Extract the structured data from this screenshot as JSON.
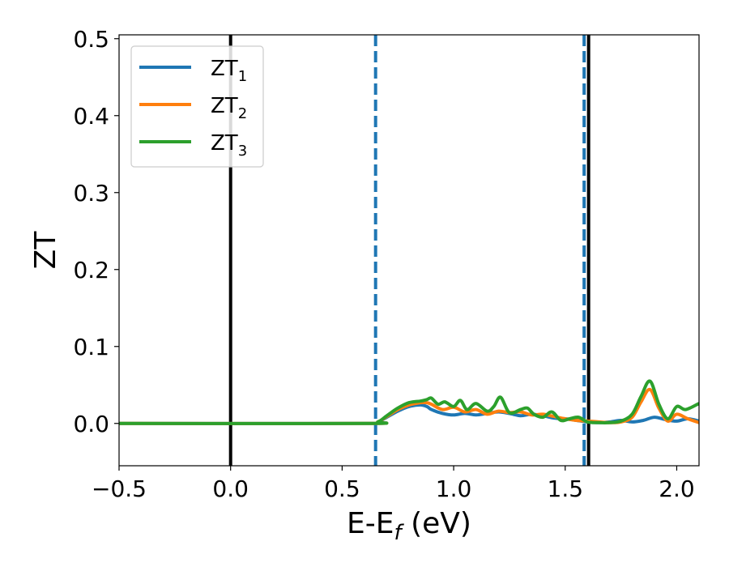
{
  "chart_data": {
    "type": "line",
    "xlabel": "E-E",
    "xlabel_sub": "f",
    "xlabel_unit": " (eV)",
    "ylabel": "ZT",
    "xlim": [
      -0.5,
      2.1
    ],
    "ylim": [
      -0.055,
      0.505
    ],
    "xticks": [
      -0.5,
      0.0,
      0.5,
      1.0,
      1.5,
      2.0
    ],
    "xtick_labels": [
      "−0.5",
      "0.0",
      "0.5",
      "1.0",
      "1.5",
      "2.0"
    ],
    "yticks": [
      0.0,
      0.1,
      0.2,
      0.3,
      0.4,
      0.5
    ],
    "ytick_labels": [
      "0.0",
      "0.1",
      "0.2",
      "0.3",
      "0.4",
      "0.5"
    ],
    "legend_position": "top-left",
    "grid": false,
    "vlines": [
      {
        "x": 0.0,
        "style": "solid",
        "color": "#000000"
      },
      {
        "x": 0.65,
        "style": "dashed",
        "color": "#1f77b4"
      },
      {
        "x": 1.585,
        "style": "dashed",
        "color": "#1f77b4"
      },
      {
        "x": 1.605,
        "style": "solid",
        "color": "#000000"
      }
    ],
    "series": [
      {
        "name": "ZT",
        "sub": "1",
        "color": "#1f77b4",
        "x": [
          -0.5,
          0.6,
          0.66,
          0.7,
          0.75,
          0.8,
          0.85,
          0.88,
          0.9,
          0.95,
          1.0,
          1.05,
          1.1,
          1.15,
          1.2,
          1.25,
          1.3,
          1.35,
          1.4,
          1.45,
          1.5,
          1.55,
          1.6,
          1.65,
          1.7,
          1.75,
          1.8,
          1.85,
          1.9,
          1.95,
          2.0,
          2.05,
          2.1
        ],
        "y": [
          0.0,
          0.0,
          0.002,
          0.008,
          0.016,
          0.022,
          0.024,
          0.022,
          0.018,
          0.013,
          0.011,
          0.013,
          0.011,
          0.013,
          0.015,
          0.013,
          0.01,
          0.012,
          0.01,
          0.007,
          0.006,
          0.004,
          0.002,
          0.001,
          0.002,
          0.004,
          0.002,
          0.004,
          0.008,
          0.005,
          0.003,
          0.006,
          0.003
        ]
      },
      {
        "name": "ZT",
        "sub": "2",
        "color": "#ff7f0e",
        "x": [
          -0.5,
          0.6,
          0.66,
          0.7,
          0.75,
          0.8,
          0.85,
          0.88,
          0.9,
          0.95,
          1.0,
          1.05,
          1.1,
          1.15,
          1.2,
          1.25,
          1.3,
          1.35,
          1.4,
          1.45,
          1.5,
          1.55,
          1.6,
          1.65,
          1.7,
          1.75,
          1.8,
          1.84,
          1.88,
          1.92,
          1.96,
          2.0,
          2.05,
          2.1
        ],
        "y": [
          0.0,
          0.0,
          0.002,
          0.009,
          0.018,
          0.024,
          0.027,
          0.027,
          0.025,
          0.018,
          0.021,
          0.015,
          0.018,
          0.012,
          0.016,
          0.014,
          0.015,
          0.011,
          0.012,
          0.009,
          0.006,
          0.004,
          0.003,
          0.002,
          0.001,
          0.002,
          0.008,
          0.028,
          0.044,
          0.02,
          0.003,
          0.012,
          0.006,
          0.001
        ]
      },
      {
        "name": "ZT",
        "sub": "3",
        "color": "#2ca02c",
        "x": [
          -0.5,
          0.6,
          0.66,
          0.7,
          0.75,
          0.8,
          0.85,
          0.88,
          0.9,
          0.93,
          0.96,
          1.0,
          1.03,
          1.06,
          1.1,
          1.15,
          1.18,
          1.21,
          1.25,
          1.3,
          1.33,
          1.36,
          1.4,
          1.44,
          1.48,
          1.52,
          1.56,
          1.6,
          1.65,
          1.7,
          1.75,
          1.8,
          1.84,
          1.88,
          1.92,
          1.96,
          2.0,
          2.04,
          2.1
        ],
        "y": [
          0.0,
          0.0,
          0.002,
          0.01,
          0.02,
          0.027,
          0.029,
          0.031,
          0.033,
          0.025,
          0.028,
          0.022,
          0.03,
          0.018,
          0.026,
          0.016,
          0.022,
          0.034,
          0.014,
          0.018,
          0.02,
          0.012,
          0.008,
          0.015,
          0.004,
          0.006,
          0.008,
          0.002,
          0.001,
          0.001,
          0.003,
          0.012,
          0.035,
          0.055,
          0.025,
          0.006,
          0.022,
          0.018,
          0.026
        ]
      }
    ]
  }
}
